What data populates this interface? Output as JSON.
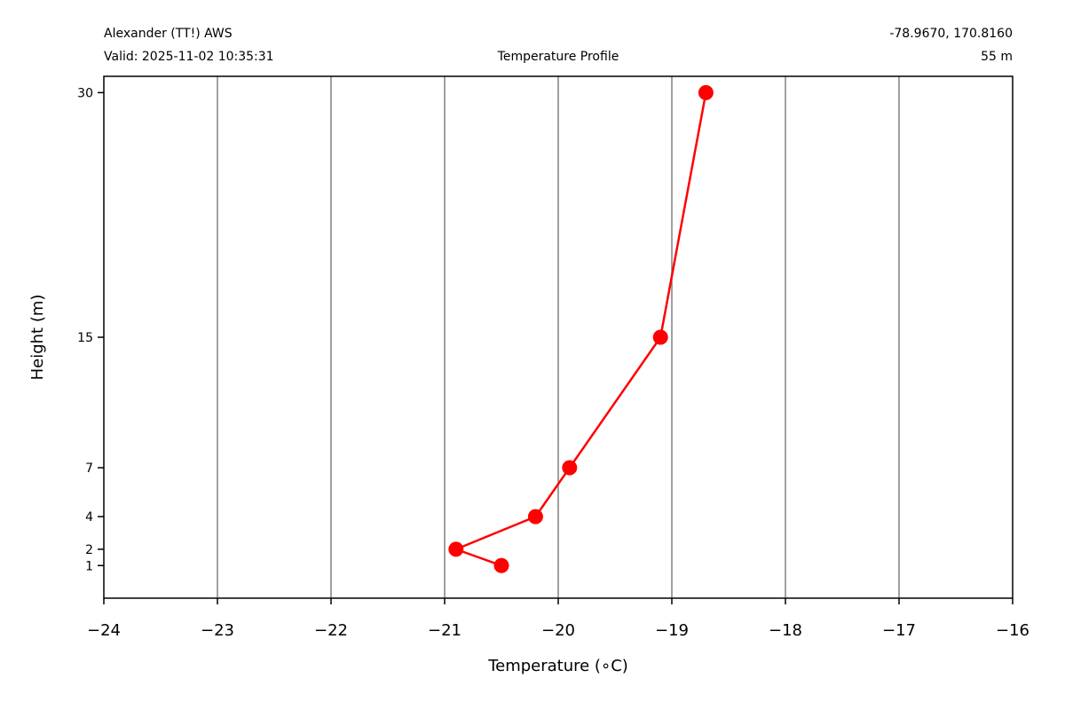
{
  "header": {
    "station": "Alexander (TT!) AWS",
    "valid": "Valid: 2025-11-02 10:35:31",
    "center_title": "Temperature Profile",
    "coords": "-78.9670, 170.8160",
    "elevation": "55 m"
  },
  "colors": {
    "series": "#ff0000",
    "grid": "#808080",
    "axes": "#000000"
  },
  "chart_data": {
    "type": "line",
    "xlabel": "Temperature ($^\\circ$C)",
    "xlabel_display": "Temperature (∘C)",
    "ylabel": "Height (m)",
    "xlim": [
      -24,
      -16
    ],
    "ylim": [
      -1,
      31
    ],
    "x_ticks": [
      -24,
      -23,
      -22,
      -21,
      -20,
      -19,
      -18,
      -17,
      -16
    ],
    "x_tick_labels": [
      "−24",
      "−23",
      "−22",
      "−21",
      "−20",
      "−19",
      "−18",
      "−17",
      "−16"
    ],
    "y_ticks": [
      1,
      2,
      4,
      7,
      15,
      30
    ],
    "y_tick_labels": [
      "1",
      "2",
      "4",
      "7",
      "15",
      "30"
    ],
    "grid": "vertical",
    "marker": "circle",
    "series": [
      {
        "points": [
          {
            "x": -20.5,
            "y": 1
          },
          {
            "x": -20.9,
            "y": 2
          },
          {
            "x": -20.2,
            "y": 4
          },
          {
            "x": -19.9,
            "y": 7
          },
          {
            "x": -19.1,
            "y": 15
          },
          {
            "x": -18.7,
            "y": 30
          }
        ]
      }
    ]
  }
}
